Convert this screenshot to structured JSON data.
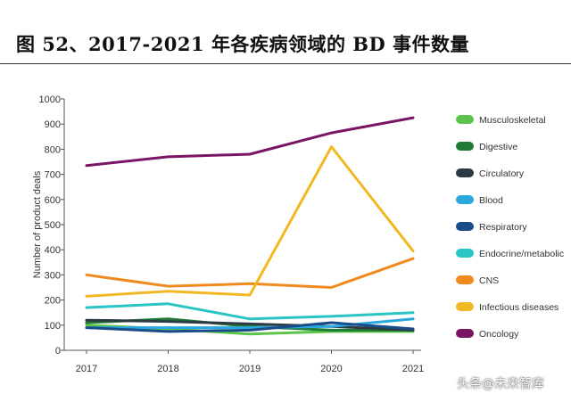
{
  "figure": {
    "title": "图 52、2017-2021 年各疾病领域的 BD 事件数量"
  },
  "watermark": "头条@未来智库",
  "chart_data": {
    "type": "line",
    "title": "图 52、2017-2021 年各疾病领域的 BD 事件数量",
    "xlabel": "",
    "ylabel": "Number of product deals",
    "x": [
      "2017",
      "2018",
      "2019",
      "2020",
      "2021"
    ],
    "ylim": [
      0,
      1000
    ],
    "yticks": [
      0,
      100,
      200,
      300,
      400,
      500,
      600,
      700,
      800,
      900,
      1000
    ],
    "grid": false,
    "legend_position": "right",
    "series": [
      {
        "name": "Musculoskeletal",
        "color": "#5cc44a",
        "values": [
          100,
          85,
          65,
          75,
          75
        ]
      },
      {
        "name": "Digestive",
        "color": "#1e7a34",
        "values": [
          110,
          125,
          95,
          80,
          80
        ]
      },
      {
        "name": "Circulatory",
        "color": "#2b3a43",
        "values": [
          120,
          115,
          105,
          95,
          80
        ]
      },
      {
        "name": "Blood",
        "color": "#2aa7df",
        "values": [
          90,
          90,
          90,
          95,
          125
        ]
      },
      {
        "name": "Respiratory",
        "color": "#1b4c8a",
        "values": [
          90,
          75,
          80,
          110,
          85
        ]
      },
      {
        "name": "Endocrine/metabolic",
        "color": "#29c4c4",
        "values": [
          170,
          185,
          125,
          135,
          150
        ]
      },
      {
        "name": "CNS",
        "color": "#f08a1e",
        "values": [
          300,
          255,
          265,
          250,
          365
        ]
      },
      {
        "name": "Infectious diseases",
        "color": "#f2b824",
        "values": [
          215,
          235,
          220,
          810,
          395
        ]
      },
      {
        "name": "Oncology",
        "color": "#7a1464",
        "values": [
          735,
          770,
          780,
          865,
          925
        ]
      }
    ]
  }
}
